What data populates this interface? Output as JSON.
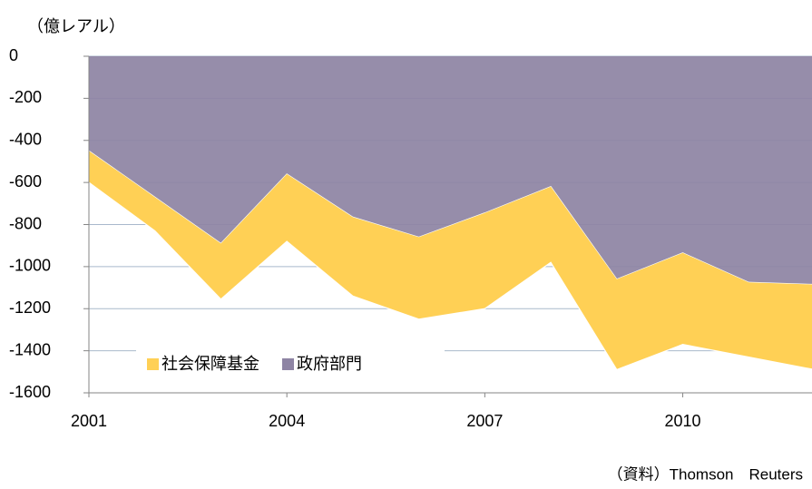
{
  "chart_data": {
    "type": "stacked_area",
    "y_label": "（億レアル）",
    "source": "（資料）Thomson　Reuters",
    "x": [
      2001,
      2002,
      2003,
      2004,
      2005,
      2006,
      2007,
      2008,
      2009,
      2010,
      2011,
      2012
    ],
    "xlim": [
      2001,
      2012
    ],
    "xticks": [
      2001,
      2004,
      2007,
      2010
    ],
    "ylim": [
      -1600,
      0
    ],
    "yticks": [
      0,
      -200,
      -400,
      -600,
      -800,
      -1000,
      -1200,
      -1400,
      -1600
    ],
    "grid": true,
    "legend": "bottom-left",
    "series": [
      {
        "name": "社会保障基金",
        "color": "#ffd055",
        "values": [
          -150,
          -160,
          -265,
          -320,
          -375,
          -390,
          -455,
          -360,
          -430,
          -435,
          -355,
          -405
        ]
      },
      {
        "name": "政府部門",
        "color": "#8e84a4",
        "values": [
          -450,
          -670,
          -890,
          -560,
          -765,
          -860,
          -745,
          -620,
          -1060,
          -935,
          -1075,
          -1085
        ]
      }
    ]
  }
}
